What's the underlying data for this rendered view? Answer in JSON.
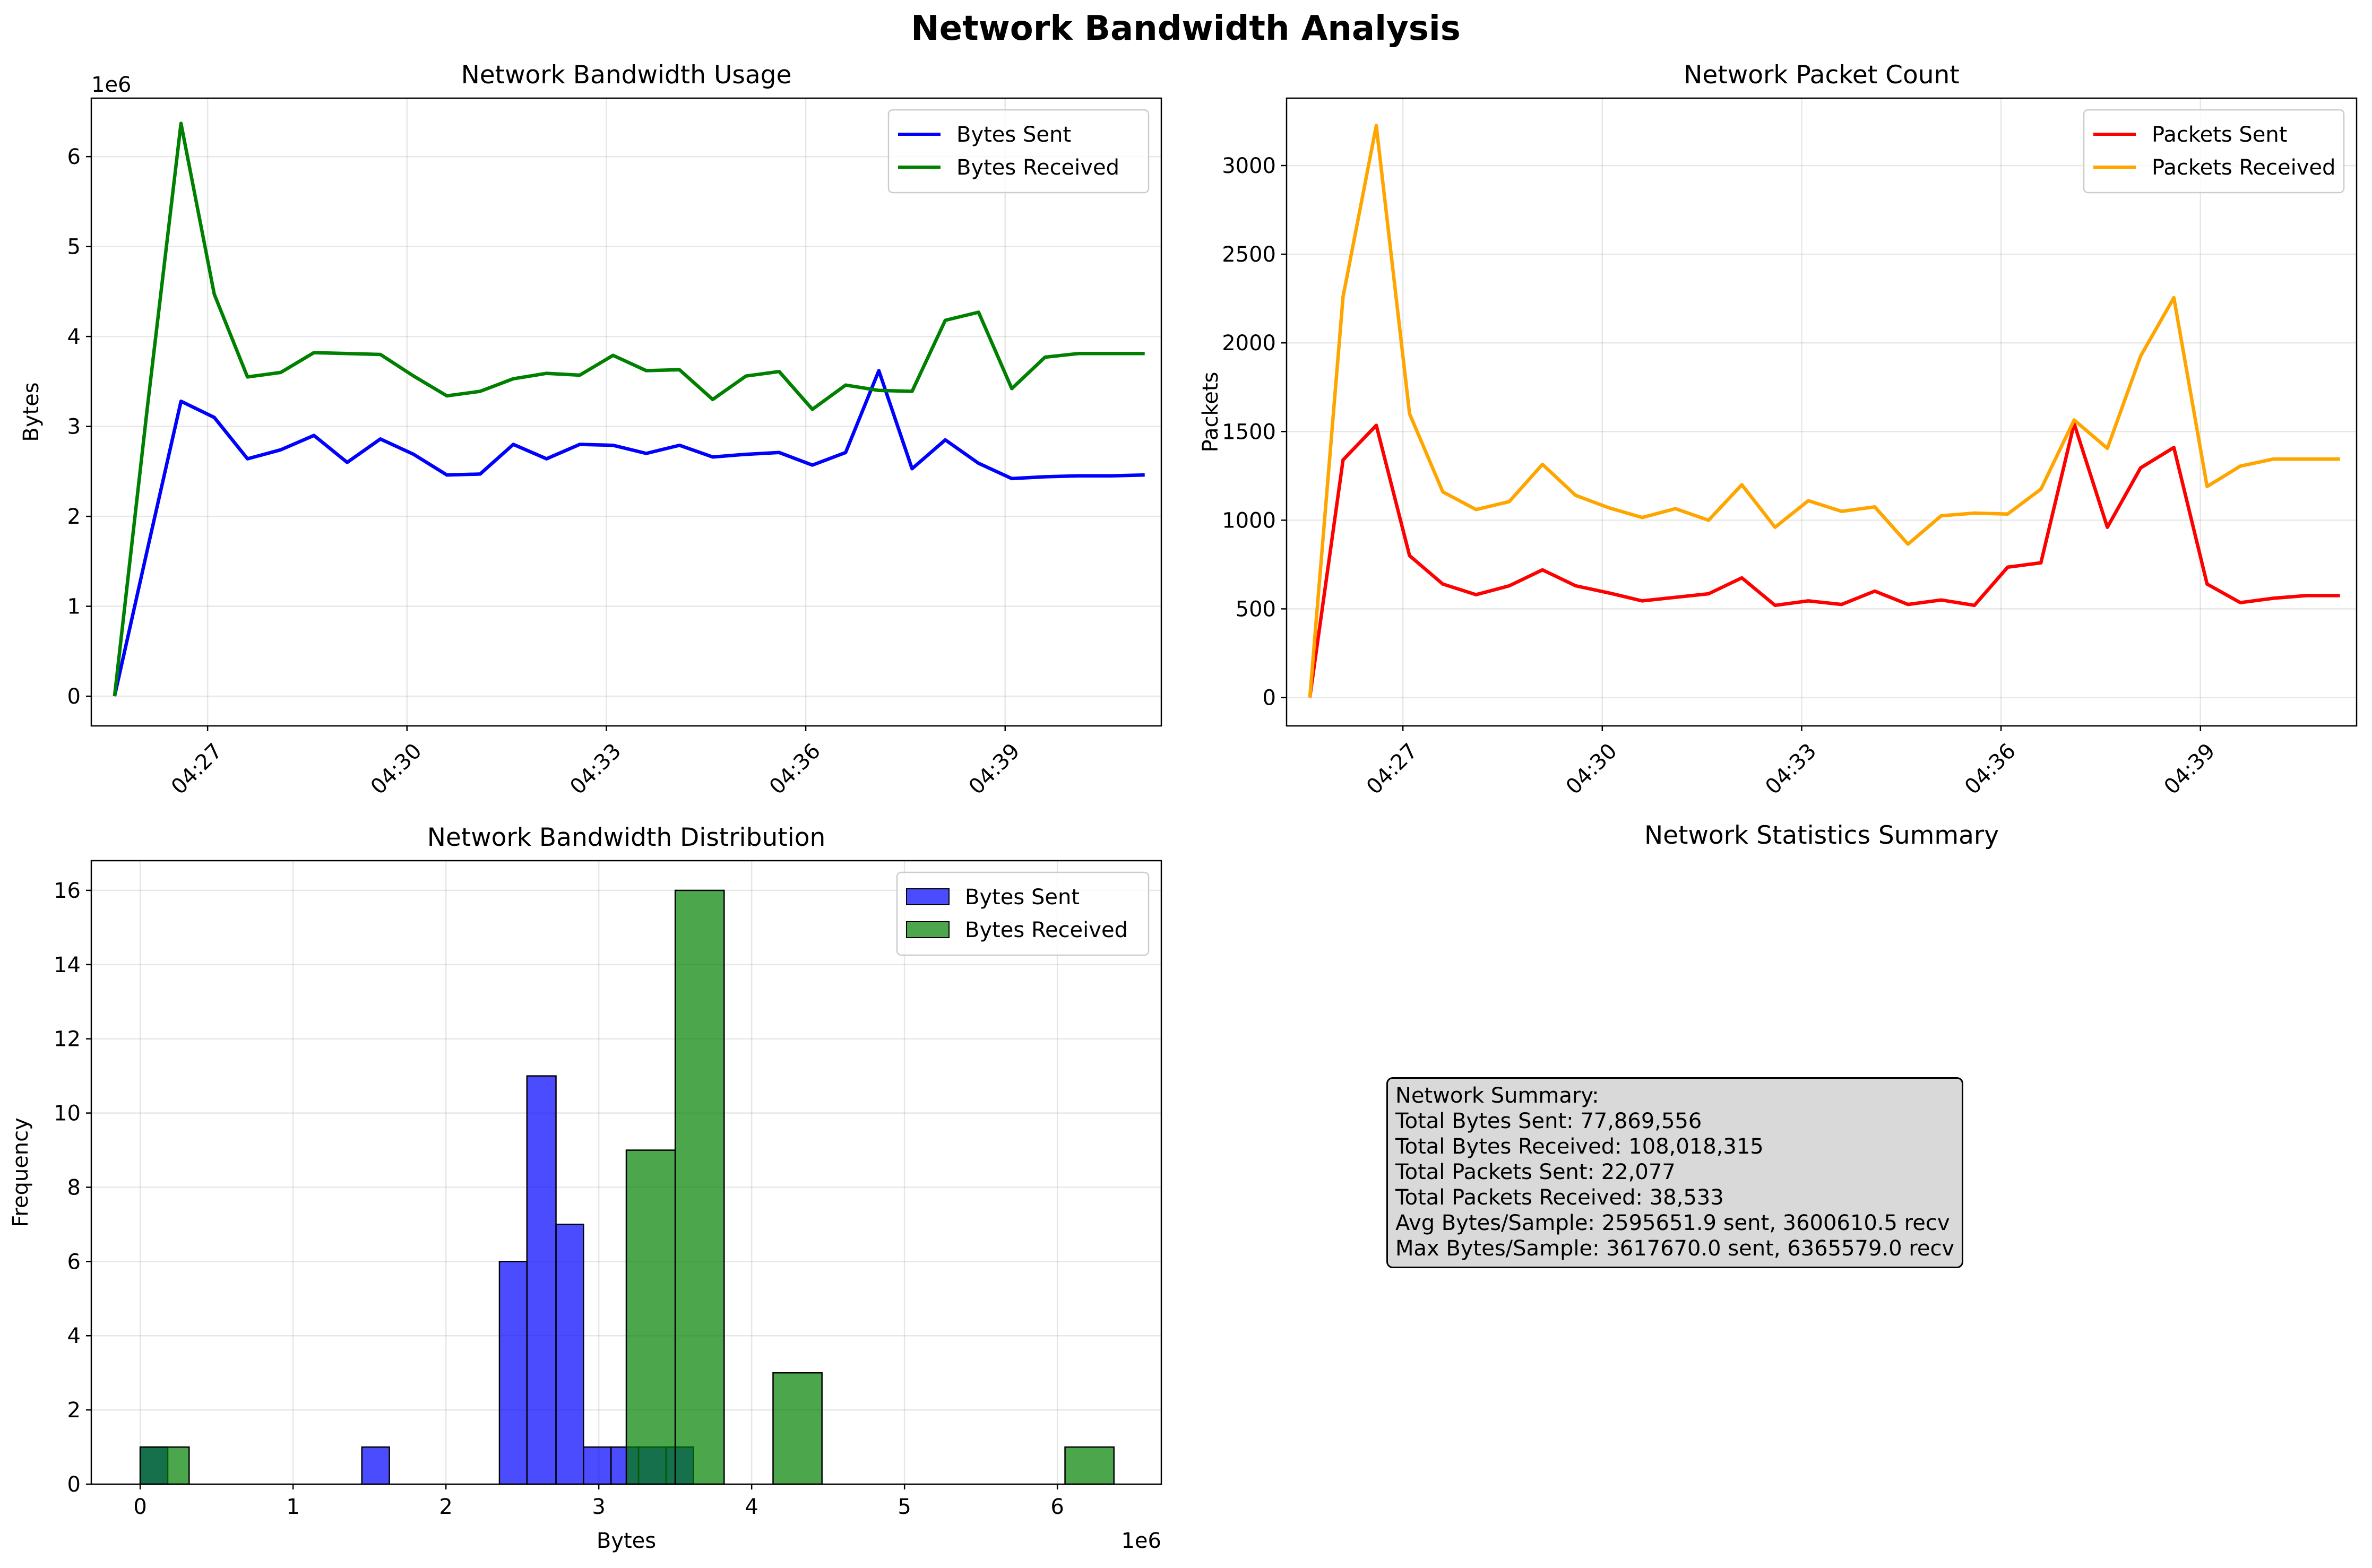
{
  "figure_title": "Network Bandwidth Analysis",
  "chart_data": [
    {
      "id": "bandwidth_usage",
      "type": "line",
      "title": "Network Bandwidth Usage",
      "xlabel": "",
      "ylabel": "Bytes",
      "y_offset_text": "1e6",
      "x_tick_labels": [
        "04:27",
        "04:30",
        "04:33",
        "04:36",
        "04:39"
      ],
      "x_tick_minutes": [
        27,
        30,
        33,
        36,
        39
      ],
      "x_range_minutes": [
        25.25,
        41.35
      ],
      "ylim": [
        -0.33,
        6.65
      ],
      "y_ticks": [
        0,
        1,
        2,
        3,
        4,
        5,
        6
      ],
      "grid": true,
      "legend_position": "upper right",
      "x_minutes": [
        25.6,
        26.1,
        26.6,
        27.1,
        27.6,
        28.1,
        28.6,
        29.1,
        29.6,
        30.1,
        30.6,
        31.1,
        31.6,
        32.1,
        32.6,
        33.1,
        33.6,
        34.1,
        34.6,
        35.1,
        35.6,
        36.1,
        36.6,
        37.1,
        37.6,
        38.1,
        38.6,
        39.1,
        39.6,
        40.1,
        40.6,
        41.1
      ],
      "series": [
        {
          "name": "Bytes Sent",
          "color": "#0000ff",
          "values": [
            0,
            1.65,
            3.28,
            3.1,
            2.64,
            2.74,
            2.9,
            2.6,
            2.86,
            2.69,
            2.46,
            2.47,
            2.8,
            2.64,
            2.8,
            2.79,
            2.7,
            2.79,
            2.66,
            2.69,
            2.71,
            2.57,
            2.71,
            3.62,
            2.53,
            2.85,
            2.59,
            2.42,
            2.44,
            2.45,
            2.45,
            2.46
          ]
        },
        {
          "name": "Bytes Received",
          "color": "#008000",
          "values": [
            0,
            3.25,
            6.37,
            4.47,
            3.55,
            3.6,
            3.82,
            3.81,
            3.8,
            3.56,
            3.34,
            3.39,
            3.53,
            3.59,
            3.57,
            3.79,
            3.62,
            3.63,
            3.3,
            3.56,
            3.61,
            3.19,
            3.46,
            3.4,
            3.39,
            4.18,
            4.27,
            3.42,
            3.77,
            3.81,
            3.81,
            3.81
          ]
        }
      ]
    },
    {
      "id": "packet_count",
      "type": "line",
      "title": "Network Packet Count",
      "xlabel": "",
      "ylabel": "Packets",
      "x_tick_labels": [
        "04:27",
        "04:30",
        "04:33",
        "04:36",
        "04:39"
      ],
      "x_tick_minutes": [
        27,
        30,
        33,
        36,
        39
      ],
      "x_range_minutes": [
        25.25,
        41.35
      ],
      "ylim": [
        -160,
        3380
      ],
      "y_ticks": [
        0,
        500,
        1000,
        1500,
        2000,
        2500,
        3000
      ],
      "grid": true,
      "legend_position": "upper right",
      "x_minutes": [
        25.6,
        26.1,
        26.6,
        27.1,
        27.6,
        28.1,
        28.6,
        29.1,
        29.6,
        30.1,
        30.6,
        31.1,
        31.6,
        32.1,
        32.6,
        33.1,
        33.6,
        34.1,
        34.6,
        35.1,
        35.6,
        36.1,
        36.6,
        37.1,
        37.6,
        38.1,
        38.6,
        39.1,
        39.6,
        40.1,
        40.6,
        41.1
      ],
      "series": [
        {
          "name": "Packets Sent",
          "color": "#ff0000",
          "values": [
            0,
            1340,
            1535,
            800,
            640,
            580,
            630,
            720,
            630,
            590,
            545,
            565,
            585,
            675,
            520,
            545,
            525,
            600,
            525,
            550,
            520,
            735,
            760,
            1545,
            960,
            1295,
            1410,
            640,
            535,
            560,
            575,
            575
          ]
        },
        {
          "name": "Packets Received",
          "color": "#ffa500",
          "values": [
            0,
            2260,
            3225,
            1600,
            1160,
            1060,
            1105,
            1315,
            1140,
            1070,
            1015,
            1065,
            1000,
            1200,
            960,
            1110,
            1050,
            1075,
            865,
            1025,
            1040,
            1035,
            1175,
            1565,
            1405,
            1925,
            2255,
            1190,
            1305,
            1345,
            1345,
            1345
          ]
        }
      ]
    },
    {
      "id": "bandwidth_distribution",
      "type": "bar",
      "title": "Network Bandwidth Distribution",
      "xlabel": "Bytes",
      "ylabel": "Frequency",
      "x_offset_text": "1e6",
      "xlim": [
        -0.32,
        6.68
      ],
      "ylim": [
        0,
        16.8
      ],
      "x_ticks": [
        0,
        1,
        2,
        3,
        4,
        5,
        6
      ],
      "y_ticks": [
        0,
        2,
        4,
        6,
        8,
        10,
        12,
        14,
        16
      ],
      "grid": true,
      "legend_position": "upper right",
      "series": [
        {
          "name": "Bytes Sent",
          "color": "#0000ff",
          "bins": [
            {
              "x0": 0.0,
              "x1": 0.18,
              "count": 1
            },
            {
              "x0": 1.45,
              "x1": 1.63,
              "count": 1
            },
            {
              "x0": 2.35,
              "x1": 2.53,
              "count": 6
            },
            {
              "x0": 2.53,
              "x1": 2.72,
              "count": 11
            },
            {
              "x0": 2.72,
              "x1": 2.9,
              "count": 7
            },
            {
              "x0": 2.9,
              "x1": 3.08,
              "count": 1
            },
            {
              "x0": 3.08,
              "x1": 3.26,
              "count": 1
            },
            {
              "x0": 3.26,
              "x1": 3.44,
              "count": 1
            },
            {
              "x0": 3.44,
              "x1": 3.62,
              "count": 1
            }
          ]
        },
        {
          "name": "Bytes Received",
          "color": "#008000",
          "bins": [
            {
              "x0": 0.0,
              "x1": 0.32,
              "count": 1
            },
            {
              "x0": 3.18,
              "x1": 3.5,
              "count": 9
            },
            {
              "x0": 3.5,
              "x1": 3.82,
              "count": 16
            },
            {
              "x0": 4.14,
              "x1": 4.46,
              "count": 3
            },
            {
              "x0": 6.05,
              "x1": 6.37,
              "count": 1
            }
          ]
        }
      ]
    }
  ],
  "summary_panel": {
    "title": "Network Statistics Summary",
    "lines": [
      "Network Summary:",
      "Total Bytes Sent: 77,869,556",
      "Total Bytes Received: 108,018,315",
      "Total Packets Sent: 22,077",
      "Total Packets Received: 38,533",
      "Avg Bytes/Sample: 2595651.9 sent, 3600610.5 recv",
      "Max Bytes/Sample: 3617670.0 sent, 6365579.0 recv"
    ]
  }
}
